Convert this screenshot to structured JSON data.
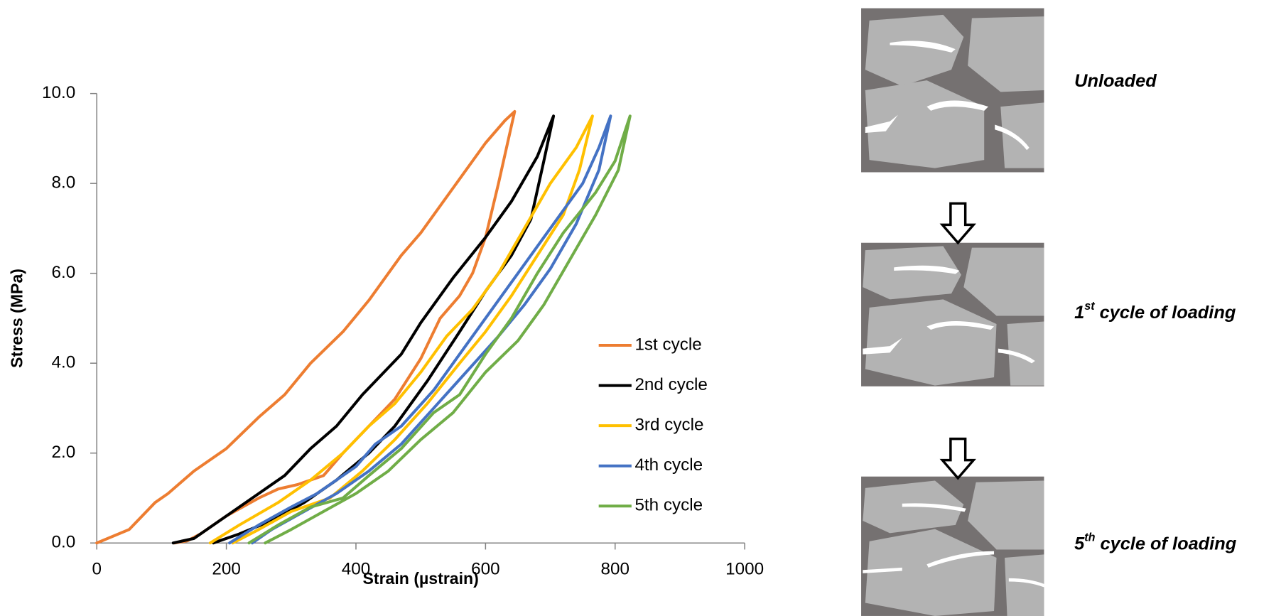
{
  "chart_data": {
    "type": "line",
    "xlabel": "Strain (µstrain)",
    "ylabel": "Stress (MPa)",
    "xlim": [
      0,
      1000
    ],
    "ylim": [
      0,
      10
    ],
    "xticks": [
      0,
      200,
      400,
      600,
      800,
      1000
    ],
    "yticks": [
      {
        "value": 0,
        "label": "0.0"
      },
      {
        "value": 2,
        "label": "2.0"
      },
      {
        "value": 4,
        "label": "4.0"
      },
      {
        "value": 6,
        "label": "6.0"
      },
      {
        "value": 8,
        "label": "8.0"
      },
      {
        "value": 10,
        "label": "10.0"
      }
    ],
    "series": [
      {
        "name": "1st cycle",
        "color": "#ED7D31",
        "x": [
          0,
          50,
          90,
          110,
          150,
          200,
          250,
          290,
          330,
          380,
          420,
          470,
          500,
          550,
          600,
          630,
          645,
          620,
          600,
          580,
          560,
          530,
          500,
          460,
          420,
          380,
          350,
          310,
          280,
          250,
          200,
          160,
          140,
          120
        ],
        "y": [
          0,
          0.3,
          0.9,
          1.1,
          1.6,
          2.1,
          2.8,
          3.3,
          4.0,
          4.7,
          5.4,
          6.4,
          6.9,
          7.9,
          8.9,
          9.4,
          9.6,
          8.0,
          6.8,
          6.0,
          5.5,
          5.0,
          4.1,
          3.2,
          2.6,
          2.0,
          1.5,
          1.3,
          1.2,
          1.0,
          0.6,
          0.2,
          0.05,
          0
        ]
      },
      {
        "name": "2nd cycle",
        "color": "#000000",
        "x": [
          118,
          150,
          200,
          250,
          290,
          330,
          370,
          410,
          450,
          470,
          500,
          550,
          600,
          640,
          680,
          705,
          690,
          670,
          640,
          600,
          560,
          510,
          460,
          420,
          370,
          320,
          270,
          220,
          180
        ],
        "y": [
          0,
          0.1,
          0.6,
          1.1,
          1.5,
          2.1,
          2.6,
          3.3,
          3.9,
          4.2,
          4.9,
          5.9,
          6.8,
          7.6,
          8.6,
          9.5,
          8.5,
          7.2,
          6.4,
          5.6,
          4.7,
          3.6,
          2.6,
          2.0,
          1.4,
          0.9,
          0.5,
          0.2,
          0
        ]
      },
      {
        "name": "3rd cycle",
        "color": "#FFC000",
        "x": [
          175,
          220,
          280,
          330,
          380,
          420,
          460,
          500,
          540,
          580,
          620,
          660,
          700,
          740,
          765,
          745,
          720,
          680,
          640,
          600,
          560,
          510,
          460,
          410,
          360,
          300,
          250,
          210
        ],
        "y": [
          0,
          0.4,
          0.9,
          1.4,
          2.0,
          2.6,
          3.1,
          3.8,
          4.6,
          5.2,
          6.0,
          7.0,
          8.0,
          8.8,
          9.5,
          8.3,
          7.3,
          6.4,
          5.5,
          4.7,
          4.0,
          3.1,
          2.3,
          1.6,
          1.0,
          0.7,
          0.3,
          0
        ]
      },
      {
        "name": "4th cycle",
        "color": "#4472C4",
        "x": [
          205,
          250,
          300,
          340,
          400,
          430,
          470,
          520,
          580,
          640,
          700,
          750,
          775,
          793,
          775,
          740,
          700,
          660,
          620,
          570,
          520,
          470,
          420,
          370,
          320,
          270,
          240
        ],
        "y": [
          0,
          0.4,
          0.8,
          1.1,
          1.7,
          2.2,
          2.6,
          3.4,
          4.6,
          5.8,
          7.0,
          8.0,
          8.8,
          9.5,
          8.3,
          7.1,
          6.1,
          5.3,
          4.6,
          3.8,
          3.0,
          2.2,
          1.6,
          1.1,
          0.7,
          0.3,
          0
        ]
      },
      {
        "name": "5th cycle",
        "color": "#70AD47",
        "x": [
          235,
          280,
          330,
          380,
          420,
          470,
          520,
          560,
          600,
          640,
          680,
          720,
          770,
          800,
          823,
          805,
          770,
          730,
          690,
          650,
          600,
          550,
          500,
          450,
          400,
          350,
          300,
          260
        ],
        "y": [
          0,
          0.4,
          0.8,
          1.0,
          1.5,
          2.1,
          2.9,
          3.3,
          4.2,
          5.0,
          6.0,
          6.9,
          7.8,
          8.5,
          9.5,
          8.3,
          7.3,
          6.3,
          5.3,
          4.5,
          3.8,
          2.9,
          2.3,
          1.6,
          1.1,
          0.7,
          0.3,
          0
        ]
      }
    ]
  },
  "panels": [
    {
      "text": "Unloaded"
    },
    {
      "ordinal": "1",
      "sup": "st",
      "text": "cycle of loading"
    },
    {
      "ordinal": "5",
      "sup": "th",
      "text": "cycle of loading"
    }
  ]
}
